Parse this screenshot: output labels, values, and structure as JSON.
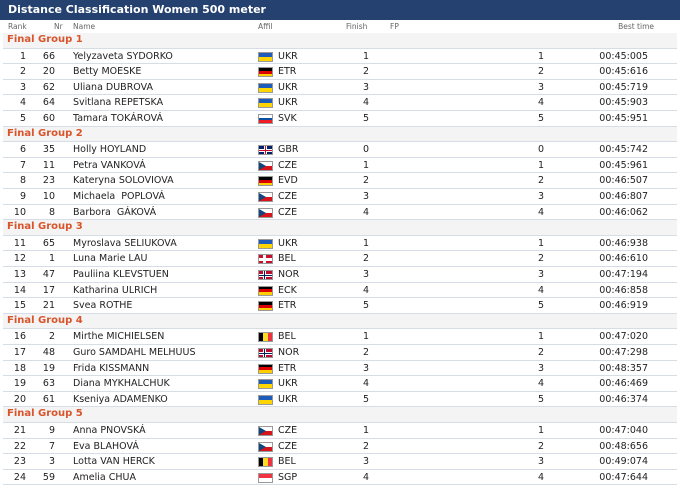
{
  "title": "Distance Classification Women 500 meter",
  "columns": {
    "rank": "Rank",
    "nr": "Nr",
    "name": "Name",
    "affil": "Affil",
    "finish": "Finish",
    "fp": "FP",
    "time": "Best time"
  },
  "groups": [
    {
      "title": "Final Group 1",
      "rows": [
        {
          "rank": 1,
          "nr": 66,
          "name": "Yelyzaveta SYDORKO",
          "affil": "UKR",
          "flag": [
            "h",
            "#1f5bbb",
            "#ffd500"
          ],
          "finish": 1,
          "fp": 1,
          "time": "00:45:005"
        },
        {
          "rank": 2,
          "nr": 20,
          "name": "Betty MOESKE",
          "affil": "ETR",
          "flag": [
            "h",
            "#000000",
            "#dd0000",
            "#ffce00"
          ],
          "finish": 2,
          "fp": 2,
          "time": "00:45:616"
        },
        {
          "rank": 3,
          "nr": 62,
          "name": "Uliana DUBROVA",
          "affil": "UKR",
          "flag": [
            "h",
            "#1f5bbb",
            "#ffd500"
          ],
          "finish": 3,
          "fp": 3,
          "time": "00:45:719"
        },
        {
          "rank": 4,
          "nr": 64,
          "name": "Svitlana REPETSKA",
          "affil": "UKR",
          "flag": [
            "h",
            "#1f5bbb",
            "#ffd500"
          ],
          "finish": 4,
          "fp": 4,
          "time": "00:45:903"
        },
        {
          "rank": 5,
          "nr": 60,
          "name": "Tamara TOKÁROVÁ",
          "affil": "SVK",
          "flag": [
            "h",
            "#ffffff",
            "#0b4ea2",
            "#ee1c25"
          ],
          "finish": 5,
          "fp": 5,
          "time": "00:45:951"
        }
      ]
    },
    {
      "title": "Final Group 2",
      "rows": [
        {
          "rank": 6,
          "nr": 35,
          "name": "Holly HOYLAND",
          "affil": "GBR",
          "flag": [
            "gb",
            "#012169",
            "#ffffff",
            "#c8102e"
          ],
          "finish": 0,
          "fp": 0,
          "time": "00:45:742"
        },
        {
          "rank": 7,
          "nr": 11,
          "name": "Petra VANKOVÁ",
          "affil": "CZE",
          "flag": [
            "cz",
            "#ffffff",
            "#d7141a",
            "#11457e"
          ],
          "finish": 1,
          "fp": 1,
          "time": "00:45:961"
        },
        {
          "rank": 8,
          "nr": 23,
          "name": "Kateryna SOLOVIOVA",
          "affil": "EVD",
          "flag": [
            "h",
            "#000000",
            "#dd0000",
            "#ffce00"
          ],
          "finish": 2,
          "fp": 2,
          "time": "00:46:507"
        },
        {
          "rank": 9,
          "nr": 10,
          "name": "Michaela  POPLOVÁ",
          "affil": "CZE",
          "flag": [
            "cz",
            "#ffffff",
            "#d7141a",
            "#11457e"
          ],
          "finish": 3,
          "fp": 3,
          "time": "00:46:807"
        },
        {
          "rank": 10,
          "nr": 8,
          "name": "Barbora  GÁKOVÁ",
          "affil": "CZE",
          "flag": [
            "cz",
            "#ffffff",
            "#d7141a",
            "#11457e"
          ],
          "finish": 4,
          "fp": 4,
          "time": "00:46:062"
        }
      ]
    },
    {
      "title": "Final Group 3",
      "rows": [
        {
          "rank": 11,
          "nr": 65,
          "name": "Myroslava SELIUKOVA",
          "affil": "UKR",
          "flag": [
            "h",
            "#1f5bbb",
            "#ffd500"
          ],
          "finish": 1,
          "fp": 1,
          "time": "00:46:938"
        },
        {
          "rank": 12,
          "nr": 1,
          "name": "Luna Marie LAU",
          "affil": "BEL",
          "flag": [
            "cross",
            "#c8102e",
            "#ffffff"
          ],
          "finish": 2,
          "fp": 2,
          "time": "00:46:610"
        },
        {
          "rank": 13,
          "nr": 47,
          "name": "Pauliina KLEVSTUEN",
          "affil": "NOR",
          "flag": [
            "cross",
            "#ba0c2f",
            "#ffffff",
            "#00205b"
          ],
          "finish": 3,
          "fp": 3,
          "time": "00:47:194"
        },
        {
          "rank": 14,
          "nr": 17,
          "name": "Katharina ULRICH",
          "affil": "ECK",
          "flag": [
            "h",
            "#000000",
            "#dd0000",
            "#ffce00"
          ],
          "finish": 4,
          "fp": 4,
          "time": "00:46:858"
        },
        {
          "rank": 15,
          "nr": 21,
          "name": "Svea ROTHE",
          "affil": "ETR",
          "flag": [
            "h",
            "#000000",
            "#dd0000",
            "#ffce00"
          ],
          "finish": 5,
          "fp": 5,
          "time": "00:46:919"
        }
      ]
    },
    {
      "title": "Final Group 4",
      "rows": [
        {
          "rank": 16,
          "nr": 2,
          "name": "Mirthe MICHIELSEN",
          "affil": "BEL",
          "flag": [
            "v",
            "#000000",
            "#fdda24",
            "#ef3340"
          ],
          "finish": 1,
          "fp": 1,
          "time": "00:47:020"
        },
        {
          "rank": 17,
          "nr": 48,
          "name": "Guro SAMDAHL MELHUUS",
          "affil": "NOR",
          "flag": [
            "cross",
            "#ba0c2f",
            "#ffffff",
            "#00205b"
          ],
          "finish": 2,
          "fp": 2,
          "time": "00:47:298"
        },
        {
          "rank": 18,
          "nr": 19,
          "name": "Frida KISSMANN",
          "affil": "ETR",
          "flag": [
            "h",
            "#000000",
            "#dd0000",
            "#ffce00"
          ],
          "finish": 3,
          "fp": 3,
          "time": "00:48:357"
        },
        {
          "rank": 19,
          "nr": 63,
          "name": "Diana MYKHALCHUK",
          "affil": "UKR",
          "flag": [
            "h",
            "#1f5bbb",
            "#ffd500"
          ],
          "finish": 4,
          "fp": 4,
          "time": "00:46:469"
        },
        {
          "rank": 20,
          "nr": 61,
          "name": "Kseniya ADAMENKO",
          "affil": "UKR",
          "flag": [
            "h",
            "#1f5bbb",
            "#ffd500"
          ],
          "finish": 5,
          "fp": 5,
          "time": "00:46:374"
        }
      ]
    },
    {
      "title": "Final Group 5",
      "rows": [
        {
          "rank": 21,
          "nr": 9,
          "name": "Anna PNOVSKÁ",
          "affil": "CZE",
          "flag": [
            "cz",
            "#ffffff",
            "#d7141a",
            "#11457e"
          ],
          "finish": 1,
          "fp": 1,
          "time": "00:47:040"
        },
        {
          "rank": 22,
          "nr": 7,
          "name": "Eva BLAHOVÁ",
          "affil": "CZE",
          "flag": [
            "cz",
            "#ffffff",
            "#d7141a",
            "#11457e"
          ],
          "finish": 2,
          "fp": 2,
          "time": "00:48:656"
        },
        {
          "rank": 23,
          "nr": 3,
          "name": "Lotta VAN HERCK",
          "affil": "BEL",
          "flag": [
            "v",
            "#000000",
            "#fdda24",
            "#ef3340"
          ],
          "finish": 3,
          "fp": 3,
          "time": "00:49:074"
        },
        {
          "rank": 24,
          "nr": 59,
          "name": "Amelia CHUA",
          "affil": "SGP",
          "flag": [
            "h",
            "#ef3340",
            "#ffffff"
          ],
          "finish": 4,
          "fp": 4,
          "time": "00:47:644"
        }
      ]
    }
  ]
}
